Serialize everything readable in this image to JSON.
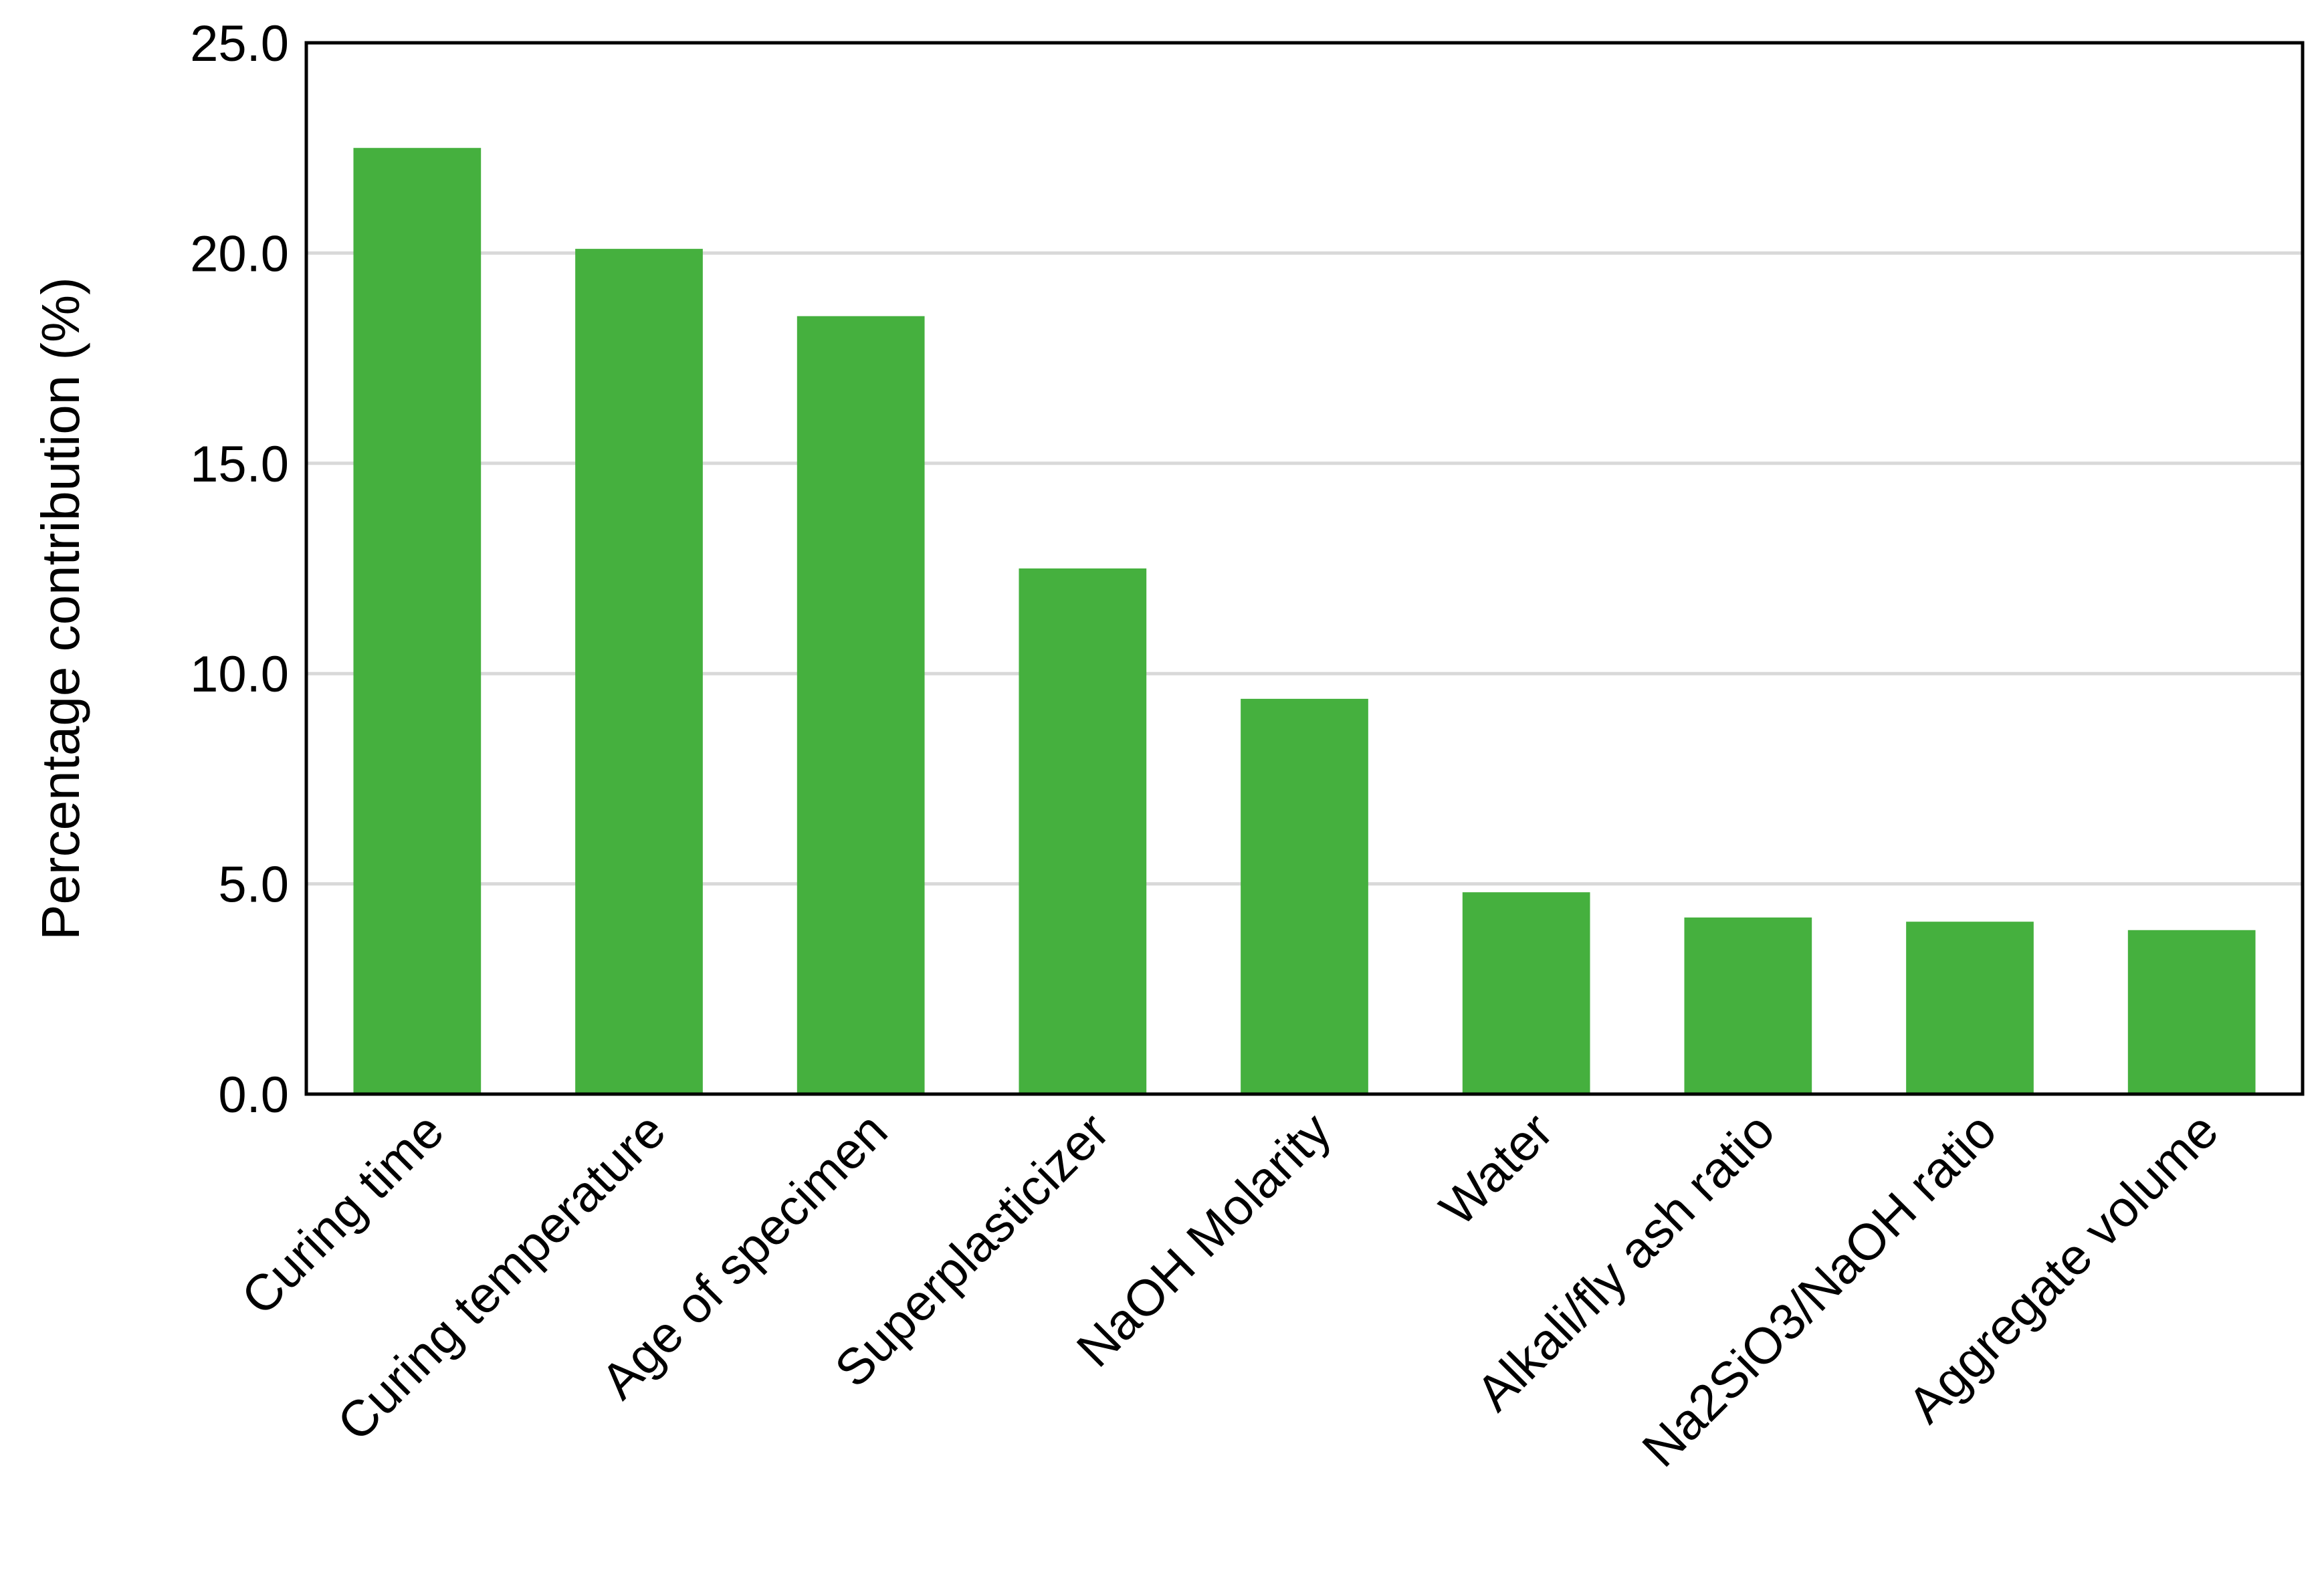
{
  "chart_data": {
    "type": "bar",
    "categories": [
      "Curing time",
      "Curing temperature",
      "Age of specimen",
      "Superplasticizer",
      "NaOH Molarity",
      "Water",
      "Alkali/fly ash ratio",
      "Na2SiO3/NaOH ratio",
      "Aggregate volume"
    ],
    "values": [
      22.5,
      20.1,
      18.5,
      12.5,
      9.4,
      4.8,
      4.2,
      4.1,
      3.9
    ],
    "title": "",
    "xlabel": "",
    "ylabel": "Percentage contribution (%)",
    "ylim": [
      0,
      25
    ],
    "yticks": [
      "0.0",
      "5.0",
      "10.0",
      "15.0",
      "20.0",
      "25.0"
    ],
    "ytick_values": [
      0,
      5,
      10,
      15,
      20,
      25
    ],
    "grid": true,
    "bar_color": "#45b03e",
    "grid_color": "#d9d9d9"
  }
}
